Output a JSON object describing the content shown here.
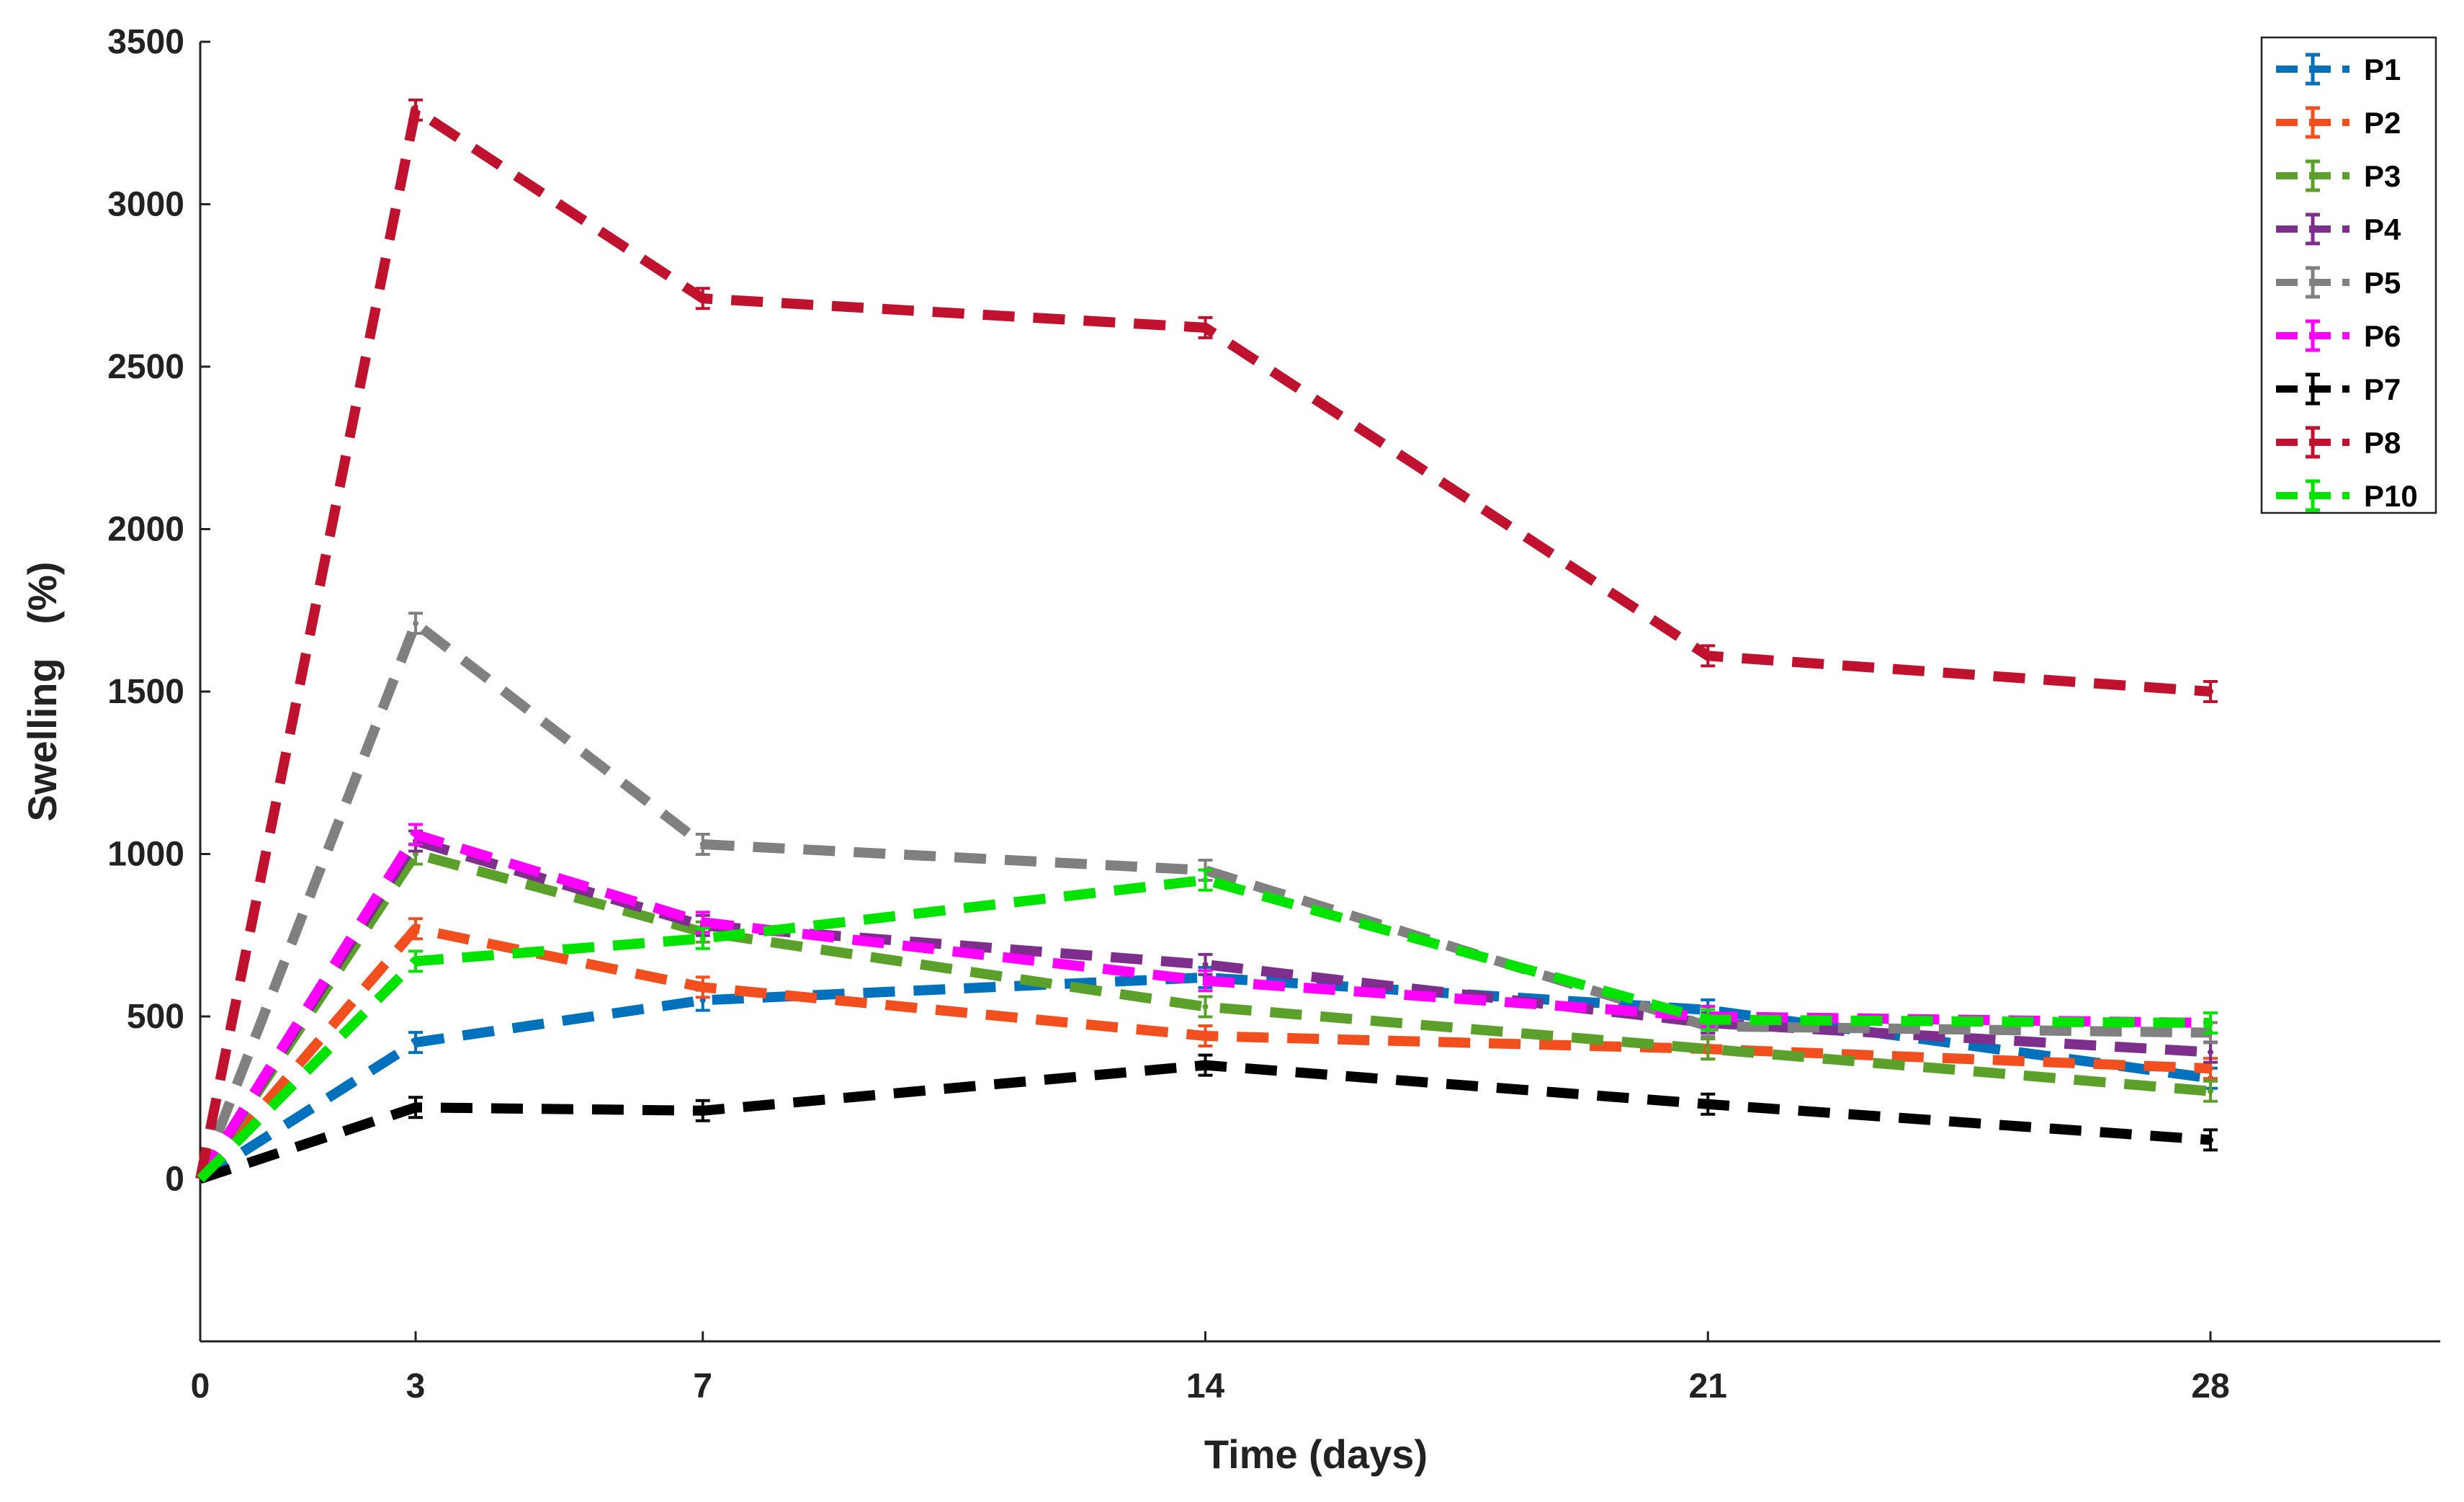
{
  "chart_data": {
    "type": "line",
    "title": "",
    "xlabel": "Time (days)",
    "ylabel": "Swelling   (%)",
    "xlim": [
      0,
      31.2
    ],
    "ylim": [
      -500,
      3500
    ],
    "xticks": [
      0,
      3,
      7,
      14,
      21,
      28
    ],
    "yticks": [
      0,
      500,
      1000,
      1500,
      2000,
      2500,
      3000,
      3500
    ],
    "x": [
      0,
      3,
      7,
      14,
      21,
      28
    ],
    "grid": false,
    "legend_position": "top-right",
    "line_style": "dashed with error bars",
    "series": [
      {
        "name": "P1",
        "color": "#0072BD",
        "values": [
          0,
          420,
          550,
          620,
          520,
          310
        ]
      },
      {
        "name": "P2",
        "color": "#F24E1E",
        "values": [
          0,
          770,
          590,
          440,
          400,
          340
        ]
      },
      {
        "name": "P3",
        "color": "#5BA02A",
        "values": [
          0,
          1000,
          760,
          530,
          400,
          270
        ]
      },
      {
        "name": "P4",
        "color": "#7E2F8E",
        "values": [
          0,
          1040,
          780,
          660,
          480,
          390
        ]
      },
      {
        "name": "P5",
        "color": "#808080",
        "values": [
          0,
          1710,
          1030,
          950,
          470,
          450
        ]
      },
      {
        "name": "P6",
        "color": "#FF00FF",
        "values": [
          0,
          1060,
          790,
          610,
          500,
          480
        ]
      },
      {
        "name": "P7",
        "color": "#000000",
        "values": [
          0,
          220,
          210,
          350,
          230,
          120
        ]
      },
      {
        "name": "P8",
        "color": "#C0122F",
        "values": [
          0,
          3290,
          2710,
          2620,
          1610,
          1500
        ]
      },
      {
        "name": "P10",
        "color": "#00E400",
        "values": [
          0,
          670,
          740,
          920,
          490,
          480
        ]
      }
    ]
  }
}
